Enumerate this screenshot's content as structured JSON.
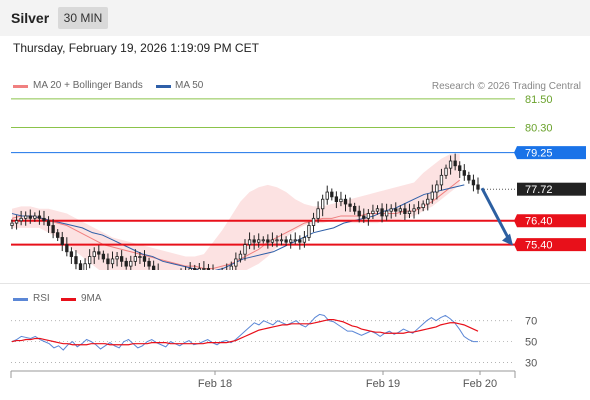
{
  "header": {
    "title": "Silver",
    "timeframe": "30 MIN",
    "datetime": "Thursday, February 19, 2026 1:19:09 PM CET"
  },
  "legend": {
    "ma20": "MA 20 + Bollinger Bands",
    "ma50": "MA 50",
    "ma20_color": "#f08080",
    "ma50_color": "#2e5fa8"
  },
  "copyright": "Research © 2026 Trading Central",
  "chart_data": [
    {
      "type": "candlestick",
      "ylim": [
        73.5,
        82.5
      ],
      "x_ticks": [
        "Feb 18",
        "Feb 19",
        "Feb 20"
      ],
      "levels": [
        {
          "label": "81.50",
          "value": 81.5,
          "color": "#8bc34a",
          "kind": "resistance-line"
        },
        {
          "label": "80.30",
          "value": 80.3,
          "color": "#8bc34a",
          "kind": "resistance-line"
        },
        {
          "label": "79.25",
          "value": 79.25,
          "color": "#1a73e8",
          "kind": "pivot"
        },
        {
          "label": "77.72",
          "value": 77.72,
          "color": "#222222",
          "kind": "last-price"
        },
        {
          "label": "76.40",
          "value": 76.4,
          "color": "#e8101a",
          "kind": "support"
        },
        {
          "label": "75.40",
          "value": 75.4,
          "color": "#e8101a",
          "kind": "support"
        }
      ],
      "close": [
        76.3,
        76.4,
        76.5,
        76.6,
        76.5,
        76.6,
        76.5,
        76.4,
        76.2,
        75.9,
        75.7,
        75.4,
        75.1,
        74.9,
        74.6,
        74.3,
        74.6,
        74.9,
        75.1,
        75.0,
        74.8,
        74.6,
        74.8,
        74.9,
        74.7,
        74.5,
        74.7,
        74.9,
        74.9,
        74.7,
        74.5,
        74.3,
        74.1,
        73.95,
        74.0,
        74.1,
        74.0,
        74.1,
        74.3,
        74.4,
        74.3,
        74.4,
        74.4,
        74.3,
        74.0,
        74.1,
        74.2,
        74.3,
        74.5,
        74.8,
        75.0,
        75.4,
        75.6,
        75.5,
        75.6,
        75.6,
        75.5,
        75.6,
        75.6,
        75.6,
        75.5,
        75.6,
        75.6,
        75.5,
        75.7,
        76.2,
        76.5,
        76.9,
        77.3,
        77.6,
        77.4,
        77.2,
        77.3,
        77.1,
        77.0,
        76.8,
        76.6,
        76.5,
        76.7,
        76.8,
        76.9,
        76.6,
        76.8,
        76.9,
        76.8,
        76.9,
        76.7,
        76.8,
        76.9,
        76.95,
        77.1,
        77.3,
        77.6,
        77.9,
        78.3,
        78.6,
        78.9,
        78.7,
        78.5,
        78.3,
        78.1,
        77.9,
        77.72
      ],
      "ma20": [
        76.5,
        76.6,
        76.6,
        76.5,
        76.4,
        76.3,
        76.2,
        76.0,
        75.8,
        75.6,
        75.4,
        75.3,
        75.2,
        75.1,
        75.0,
        74.9,
        74.8,
        74.7,
        74.6,
        74.5,
        74.5,
        74.4,
        74.4,
        74.5,
        74.6,
        74.8,
        75.0,
        75.2,
        75.5,
        75.7,
        75.9,
        76.1,
        76.3,
        76.4,
        76.5,
        76.5,
        76.6,
        76.6,
        76.6,
        76.7,
        76.7,
        76.7,
        76.7,
        76.8,
        76.8,
        77.0,
        77.2,
        77.5,
        77.8,
        78.1
      ],
      "ma20_step": 2,
      "ma50": [
        76.7,
        76.6,
        76.6,
        76.5,
        76.4,
        76.3,
        76.2,
        76.1,
        75.9,
        75.8,
        75.6,
        75.4,
        75.2,
        75.0,
        74.9,
        74.7,
        74.6,
        74.5,
        74.4,
        74.3,
        74.3,
        74.4,
        74.6,
        74.8,
        74.9,
        75.0,
        75.1,
        75.3,
        75.5,
        75.7,
        75.9,
        76.0,
        76.1,
        76.3,
        76.4,
        76.5,
        76.6,
        76.8,
        76.9,
        77.1,
        77.3,
        77.5,
        77.6,
        77.7,
        77.8,
        77.9
      ],
      "ma50_step": 2.2,
      "bb_upper": [
        76.9,
        77.0,
        77.0,
        76.9,
        76.9,
        76.8,
        76.7,
        76.5,
        76.3,
        76.1,
        75.9,
        75.7,
        75.6,
        75.5,
        75.4,
        75.3,
        75.2,
        75.1,
        75.0,
        74.9,
        74.9,
        75.0,
        75.5,
        76.0,
        76.6,
        77.2,
        77.6,
        77.8,
        77.9,
        77.8,
        77.6,
        77.3,
        77.1,
        77.0,
        77.0,
        77.1,
        77.2,
        77.3,
        77.4,
        77.5,
        77.6,
        77.7,
        77.8,
        77.9,
        78.0,
        78.4,
        78.7,
        79.0,
        79.2,
        79.2
      ],
      "bb_lower": [
        76.1,
        76.1,
        76.1,
        76.1,
        75.9,
        75.7,
        75.4,
        75.1,
        74.8,
        74.5,
        74.2,
        74.0,
        73.9,
        73.8,
        73.8,
        73.7,
        73.7,
        73.7,
        73.7,
        73.7,
        73.8,
        73.8,
        73.8,
        73.9,
        74.0,
        74.2,
        74.4,
        74.6,
        74.9,
        75.3,
        75.7,
        76.0,
        76.2,
        76.3,
        76.3,
        76.4,
        76.4,
        76.3,
        76.3,
        76.3,
        76.3,
        76.4,
        76.4,
        76.5,
        76.6,
        76.8,
        77.0,
        77.3,
        77.6,
        77.9
      ],
      "projection": {
        "from": 77.72,
        "to": 75.4,
        "color": "#2c5fa1"
      }
    },
    {
      "type": "line",
      "series": [
        {
          "name": "RSI",
          "color": "#5b87d6"
        },
        {
          "name": "9MA",
          "color": "#e8101a"
        }
      ],
      "y_ticks": [
        "70",
        "50",
        "30"
      ],
      "ylim": [
        20,
        85
      ],
      "rsi": [
        50,
        52,
        55,
        54,
        53,
        55,
        52,
        50,
        48,
        44,
        46,
        42,
        47,
        50,
        45,
        48,
        52,
        50,
        47,
        43,
        46,
        49,
        46,
        44,
        50,
        52,
        48,
        44,
        46,
        50,
        52,
        49,
        47,
        45,
        50,
        48,
        46,
        49,
        51,
        47,
        48,
        50,
        52,
        49,
        47,
        50,
        51,
        49,
        52,
        56,
        60,
        64,
        68,
        66,
        70,
        68,
        66,
        70,
        68,
        66,
        68,
        70,
        66,
        64,
        68,
        73,
        76,
        75,
        70,
        69,
        66,
        63,
        60,
        60,
        58,
        56,
        58,
        60,
        58,
        55,
        58,
        60,
        57,
        59,
        62,
        60,
        58,
        62,
        66,
        70,
        73,
        70,
        73,
        75,
        72,
        68,
        62,
        55,
        52,
        50,
        50
      ],
      "ma9": [
        50,
        51,
        51,
        52,
        52,
        53,
        53,
        52,
        51,
        50,
        49,
        48,
        48,
        47,
        47,
        47,
        47,
        48,
        48,
        48,
        48,
        47,
        47,
        47,
        47,
        47,
        48,
        48,
        48,
        48,
        49,
        49,
        49,
        49,
        48,
        48,
        48,
        48,
        48,
        48,
        48,
        48,
        49,
        49,
        49,
        49,
        49,
        50,
        51,
        53,
        55,
        57,
        59,
        61,
        62,
        63,
        64,
        65,
        66,
        66,
        67,
        67,
        67,
        67,
        67,
        68,
        69,
        70,
        71,
        71,
        70,
        69,
        67,
        65,
        64,
        62,
        61,
        60,
        59,
        59,
        58,
        58,
        58,
        58,
        58,
        59,
        59,
        60,
        61,
        62,
        63,
        64,
        66,
        67,
        68,
        68,
        67,
        66,
        64,
        62,
        60
      ]
    }
  ]
}
